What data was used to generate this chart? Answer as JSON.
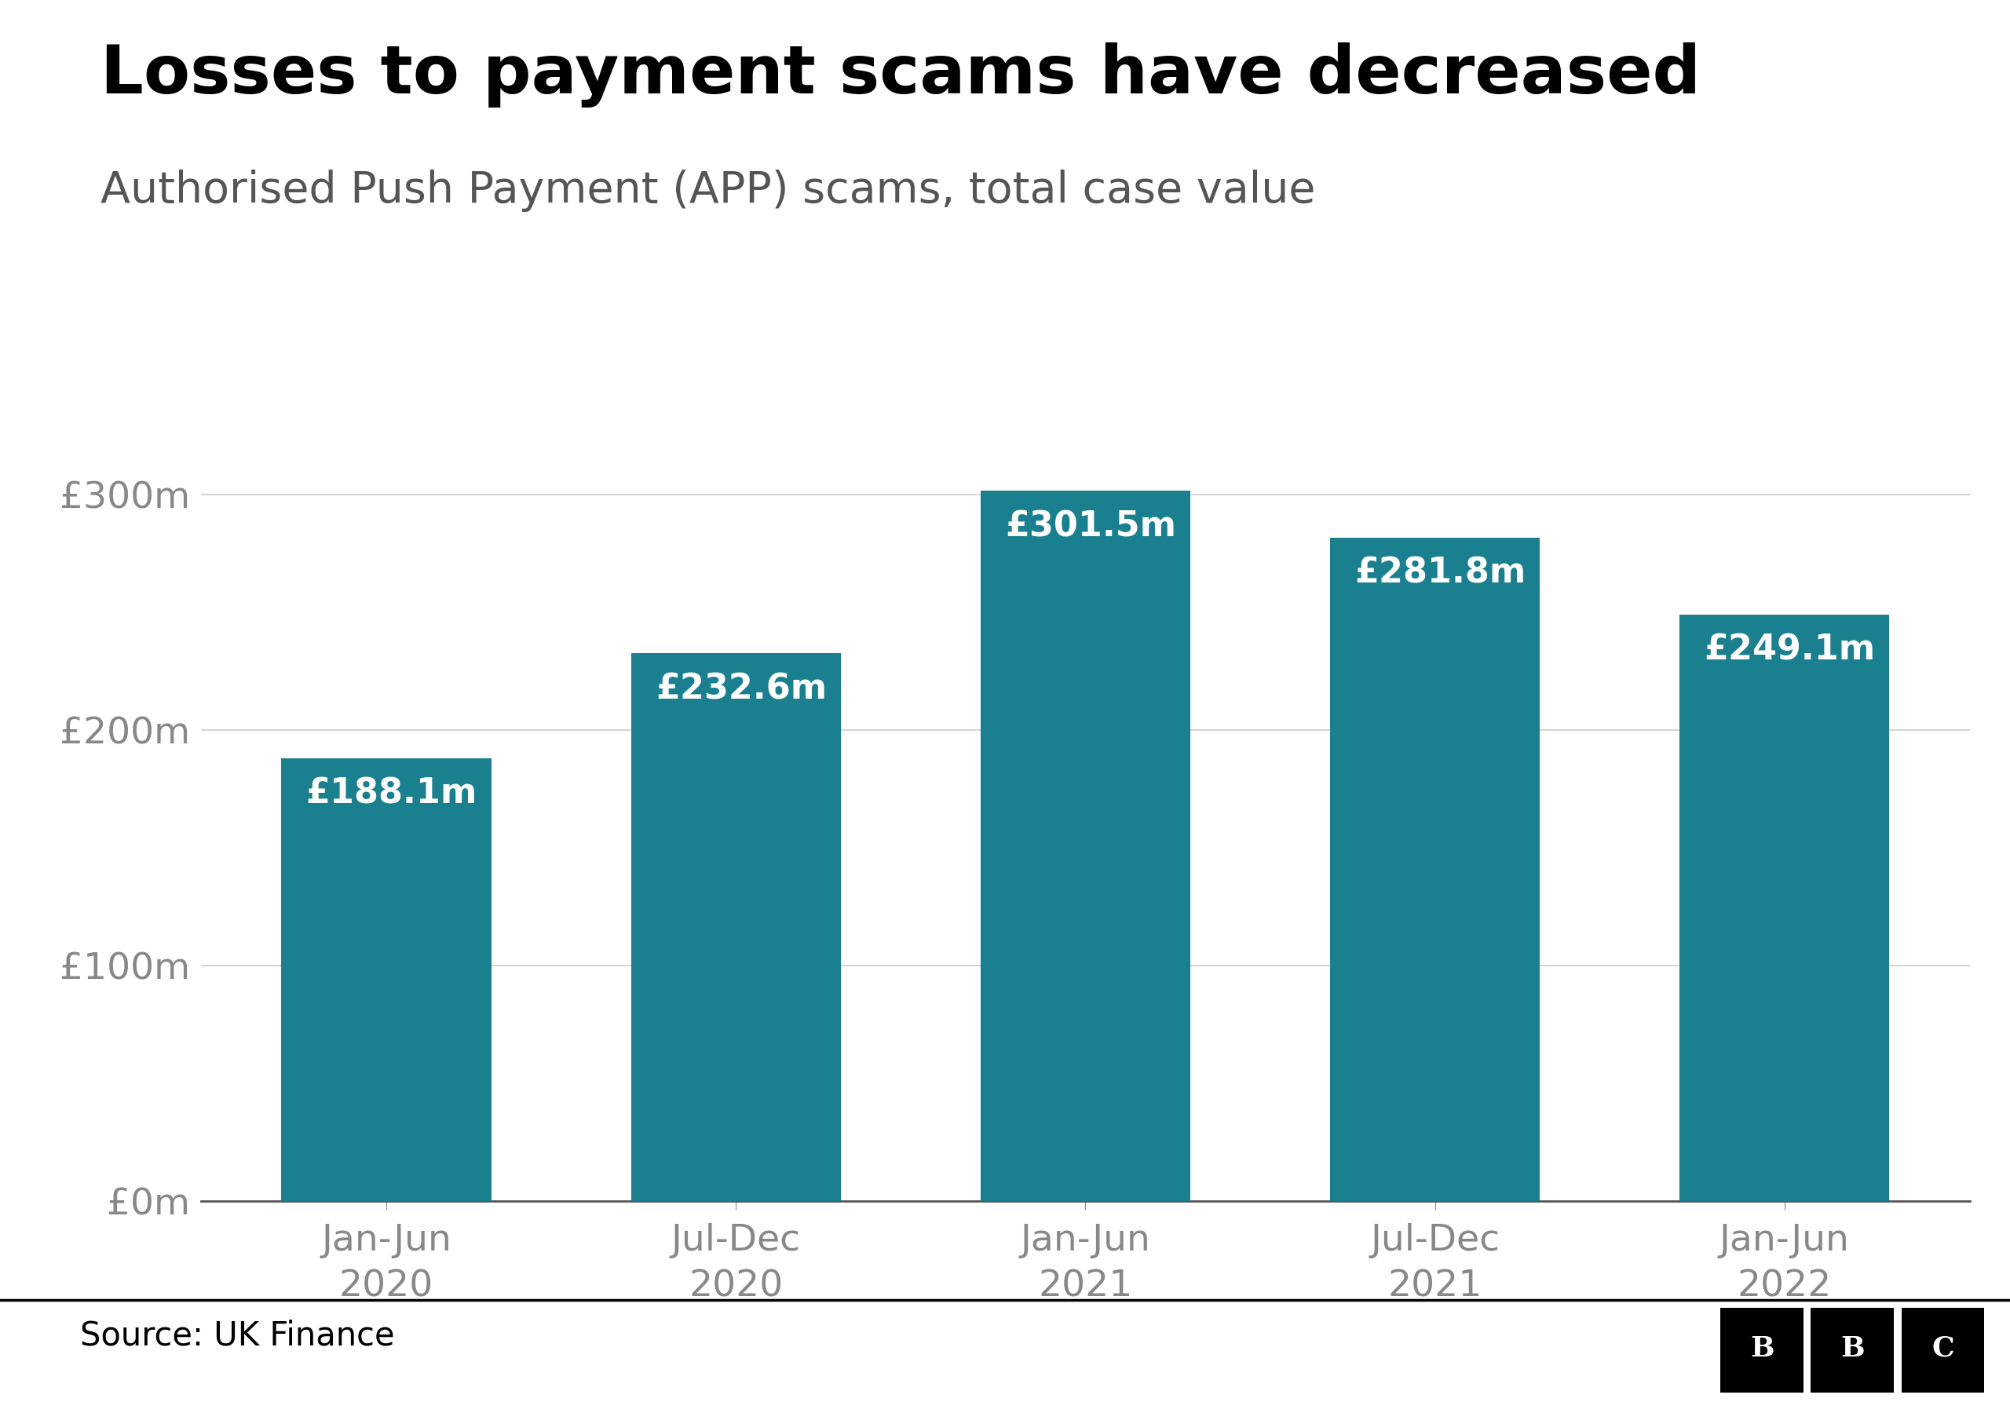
{
  "title": "Losses to payment scams have decreased",
  "subtitle": "Authorised Push Payment (APP) scams, total case value",
  "categories": [
    "Jan-Jun\n2020",
    "Jul-Dec\n2020",
    "Jan-Jun\n2021",
    "Jul-Dec\n2021",
    "Jan-Jun\n2022"
  ],
  "values": [
    188.1,
    232.6,
    301.5,
    281.8,
    249.1
  ],
  "labels": [
    "£188.1m",
    "£232.6m",
    "£301.5m",
    "£281.8m",
    "£249.1m"
  ],
  "bar_color": "#1a7f8e",
  "background_color": "#ffffff",
  "title_color": "#000000",
  "ytick_labels": [
    "£0m",
    "£100m",
    "£200m",
    "£300m"
  ],
  "ytick_values": [
    0,
    100,
    200,
    300
  ],
  "ylim": [
    0,
    330
  ],
  "source_text": "Source: UK Finance",
  "label_fontsize": 32,
  "title_fontsize": 62,
  "subtitle_fontsize": 40,
  "axis_tick_fontsize": 34,
  "source_fontsize": 30,
  "bar_width": 0.6
}
